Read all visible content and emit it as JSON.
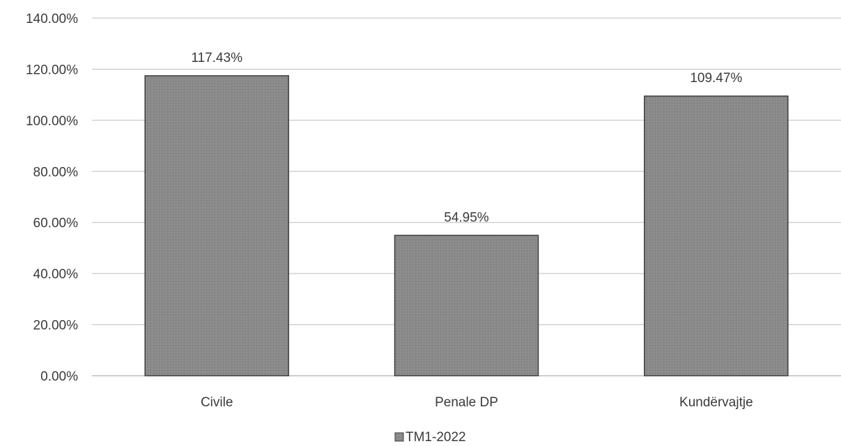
{
  "chart_data": {
    "type": "bar",
    "categories": [
      "Civile",
      "Penale  DP",
      "Kundërvajtje"
    ],
    "series": [
      {
        "name": "TM1-2022",
        "values": [
          117.43,
          54.95,
          109.47
        ],
        "data_labels": [
          "117.43%",
          "54.95%",
          "109.47%"
        ],
        "color": "#8a8a8a"
      }
    ],
    "yticks": [
      0,
      20,
      40,
      60,
      80,
      100,
      120,
      140
    ],
    "ytick_labels": [
      "0.00%",
      "20.00%",
      "40.00%",
      "60.00%",
      "80.00%",
      "100.00%",
      "120.00%",
      "140.00%"
    ],
    "ylim": [
      0,
      140
    ],
    "title": "",
    "xlabel": "",
    "ylabel": "",
    "grid": true,
    "legend_position": "bottom"
  },
  "colors": {
    "bar_fill": "#8a8a8a",
    "bar_stroke": "#3c3c3c",
    "grid": "#bdbdbd",
    "axis": "#9a9a9a",
    "text": "#3a3a3a"
  }
}
